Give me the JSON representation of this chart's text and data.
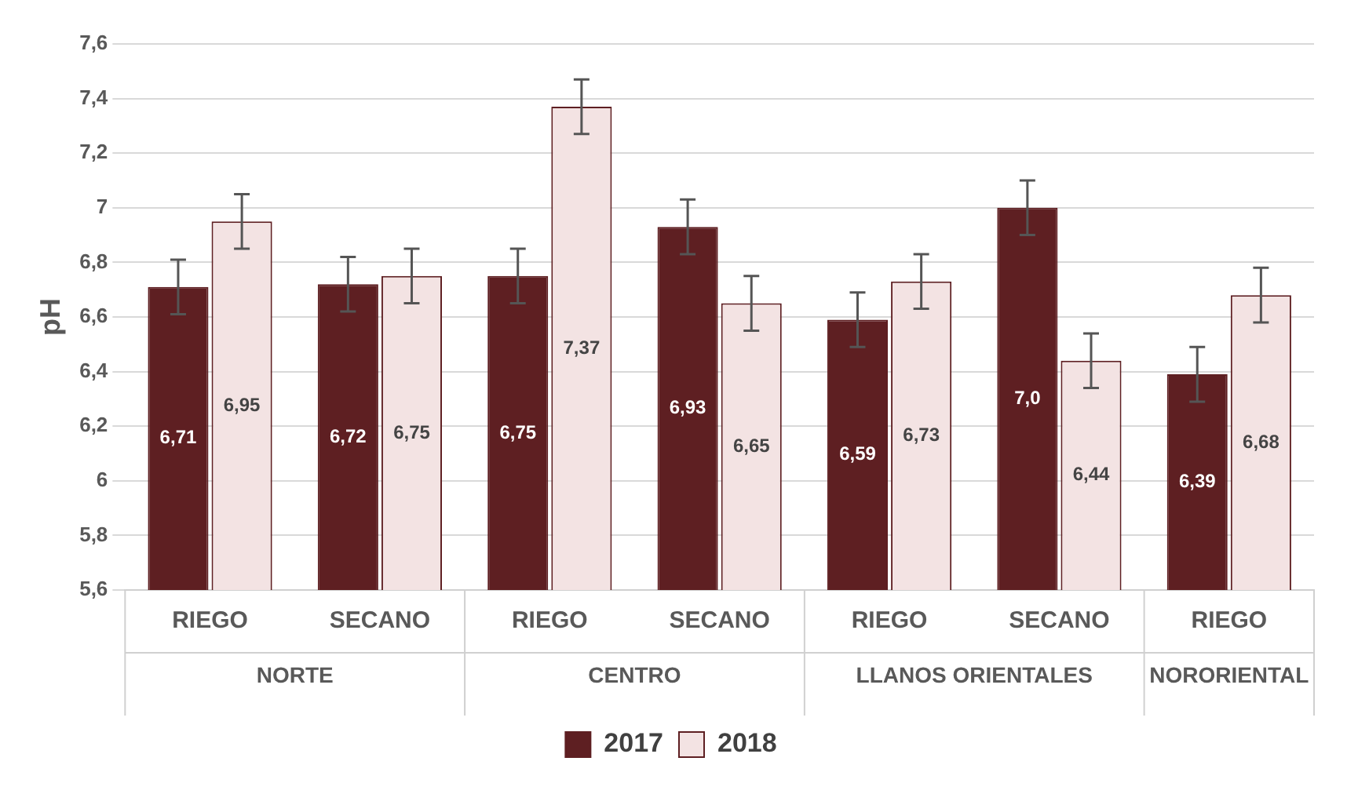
{
  "chart_data": {
    "type": "bar",
    "ylabel": "pH",
    "categories": [
      "RIEGO",
      "SECANO",
      "RIEGO",
      "SECANO",
      "RIEGO",
      "SECANO",
      "RIEGO"
    ],
    "annotations": [
      "NORTE",
      "CENTRO",
      "LLANOS ORIENTALES",
      "NORORIENTAL"
    ],
    "series": [
      {
        "name": "2017",
        "color": "#5e1f22",
        "values": [
          6.71,
          6.72,
          6.75,
          6.93,
          6.59,
          7.0,
          6.39
        ],
        "errors": [
          0.1,
          0.1,
          0.1,
          0.1,
          0.1,
          0.1,
          0.1
        ],
        "value_labels": [
          "6,71",
          "6,72",
          "6,75",
          "6,93",
          "6,59",
          "7,0",
          "6,39"
        ]
      },
      {
        "name": "2018",
        "color": "#f3e3e3",
        "values": [
          6.95,
          6.75,
          7.37,
          6.65,
          6.73,
          6.44,
          6.68
        ],
        "errors": [
          0.1,
          0.1,
          0.1,
          0.1,
          0.1,
          0.1,
          0.1
        ],
        "value_labels": [
          "6,95",
          "6,75",
          "7,37",
          "6,65",
          "6,73",
          "6,44",
          "6,68"
        ]
      }
    ],
    "ylim": [
      5.6,
      7.6
    ],
    "yticks": [
      {
        "value": 5.6,
        "label": "5,6"
      },
      {
        "value": 5.8,
        "label": "5,8"
      },
      {
        "value": 6,
        "label": "6"
      },
      {
        "value": 6.2,
        "label": "6,2"
      },
      {
        "value": 6.4,
        "label": "6,4"
      },
      {
        "value": 6.6,
        "label": "6,6"
      },
      {
        "value": 6.8,
        "label": "6,8"
      },
      {
        "value": 7,
        "label": "7"
      },
      {
        "value": 7.2,
        "label": "7,2"
      },
      {
        "value": 7.4,
        "label": "7,4"
      },
      {
        "value": 7.6,
        "label": "7,6"
      }
    ],
    "grid": "y",
    "legend": "bottom"
  }
}
